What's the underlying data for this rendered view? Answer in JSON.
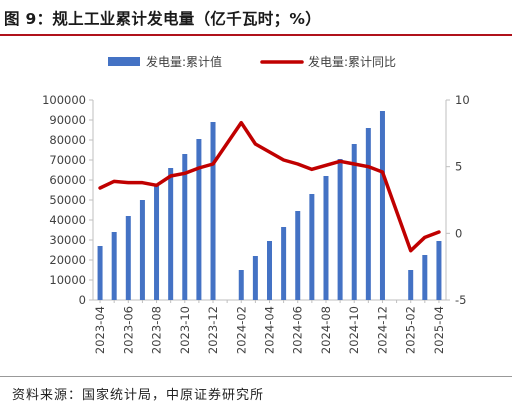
{
  "header": {
    "title": "图 9：规上工业累计发电量（亿千瓦时；%）"
  },
  "footer": {
    "source": "资料来源：国家统计局，中原证券研究所"
  },
  "colors": {
    "bar": "#4472c4",
    "line": "#c00000",
    "title_rule": "#b0111b"
  },
  "chart_data": {
    "type": "bar",
    "categories": [
      "2023-04",
      "2023-05",
      "2023-06",
      "2023-07",
      "2023-08",
      "2023-09",
      "2023-10",
      "2023-11",
      "2023-12",
      "2024-01",
      "2024-02",
      "2024-03",
      "2024-04",
      "2024-05",
      "2024-06",
      "2024-07",
      "2024-08",
      "2024-09",
      "2024-10",
      "2024-11",
      "2024-12",
      "2025-01",
      "2025-02",
      "2025-03",
      "2025-04"
    ],
    "x_tick_labels": [
      "2023-04",
      "",
      "2023-06",
      "",
      "2023-08",
      "",
      "2023-10",
      "",
      "2023-12",
      "",
      "2024-02",
      "",
      "2024-04",
      "",
      "2024-06",
      "",
      "2024-08",
      "",
      "2024-10",
      "",
      "2024-12",
      "",
      "2025-02",
      "",
      "2025-04"
    ],
    "series": [
      {
        "name": "发电量:累计值",
        "type": "bar",
        "axis": "left",
        "values": [
          27000,
          34000,
          42000,
          50000,
          58000,
          66000,
          73000,
          80500,
          89000,
          null,
          15000,
          22000,
          29500,
          36500,
          44500,
          53000,
          62000,
          70500,
          78000,
          86000,
          94500,
          null,
          15000,
          22500,
          29500
        ]
      },
      {
        "name": "发电量:累计同比",
        "type": "line",
        "axis": "right",
        "values": [
          3.4,
          3.9,
          3.8,
          3.8,
          3.6,
          4.3,
          4.5,
          4.9,
          5.2,
          null,
          8.3,
          6.7,
          6.1,
          5.5,
          5.2,
          4.8,
          5.1,
          5.4,
          5.2,
          5.0,
          4.6,
          null,
          -1.3,
          -0.3,
          0.1
        ]
      }
    ],
    "y_left": {
      "ticks": [
        "0",
        "10000",
        "20000",
        "30000",
        "40000",
        "50000",
        "60000",
        "70000",
        "80000",
        "90000",
        "100000"
      ],
      "lim": [
        0,
        100000
      ]
    },
    "y_right": {
      "ticks": [
        "-5",
        "0",
        "5",
        "10"
      ],
      "lim": [
        -5,
        10
      ]
    },
    "legend_position": "top-center",
    "grid": false
  }
}
